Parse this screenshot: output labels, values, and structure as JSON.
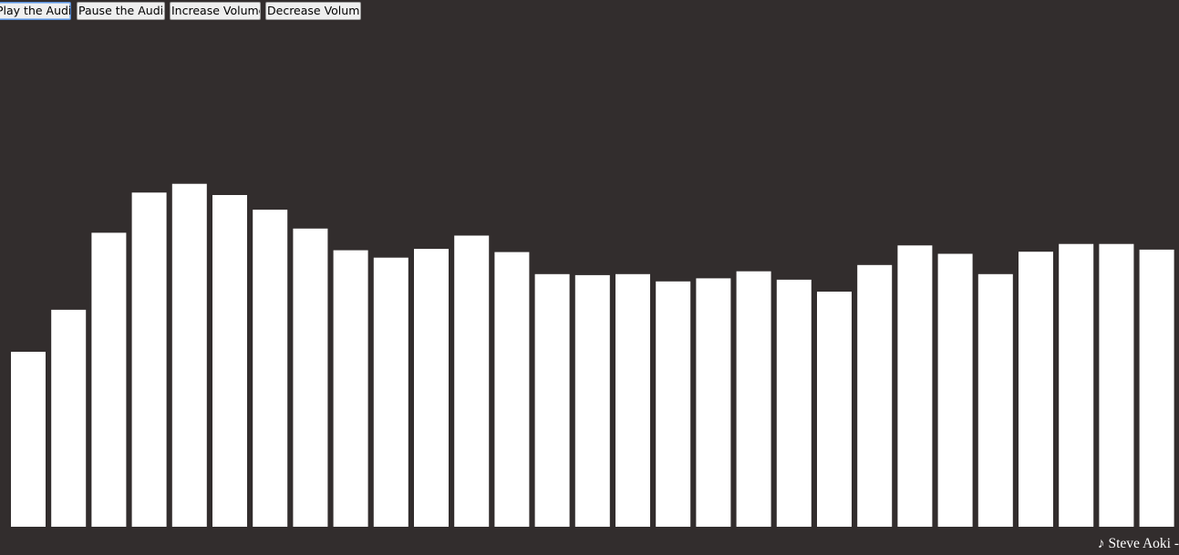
{
  "controls": {
    "play_label": "Play the Audio",
    "pause_label": "Pause the Audio",
    "increase_label": "Increase Volume",
    "decrease_label": "Decrease Volume"
  },
  "visualizer": {
    "bar_color": "#ffffff",
    "background_color": "#322d2d",
    "levels": [
      0.5,
      0.62,
      0.84,
      0.955,
      0.98,
      0.948,
      0.906,
      0.852,
      0.79,
      0.769,
      0.794,
      0.832,
      0.785,
      0.722,
      0.719,
      0.722,
      0.701,
      0.71,
      0.73,
      0.706,
      0.672,
      0.748,
      0.804,
      0.78,
      0.722,
      0.786,
      0.808,
      0.808,
      0.792
    ]
  },
  "now_playing": {
    "icon": "music-note-icon",
    "text": "♪ Steve Aoki -"
  }
}
